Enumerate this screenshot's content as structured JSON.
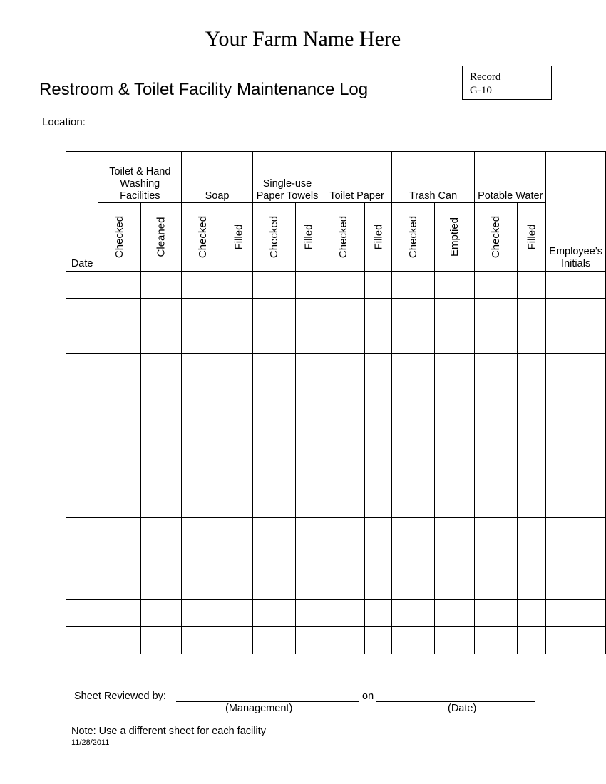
{
  "farm_name": "Your Farm Name Here",
  "title": "Restroom & Toilet Facility Maintenance Log",
  "record": {
    "line1": "Record",
    "line2": "G-10"
  },
  "location_label": "Location:",
  "location_value": "",
  "table": {
    "date_header": "Date",
    "initials_header": "Employee’s Initials",
    "groups": [
      {
        "label": "Toilet & Hand Washing Facilities",
        "subs": [
          "Checked",
          "Cleaned"
        ]
      },
      {
        "label": "Soap",
        "subs": [
          "Checked",
          "Filled"
        ]
      },
      {
        "label": "Single-use Paper Towels",
        "subs": [
          "Checked",
          "Filled"
        ]
      },
      {
        "label": "Toilet Paper",
        "subs": [
          "Checked",
          "Filled"
        ]
      },
      {
        "label": "Trash Can",
        "subs": [
          "Checked",
          "Emptied"
        ]
      },
      {
        "label": "Potable Water",
        "subs": [
          "Checked",
          "Filled"
        ]
      }
    ],
    "row_count": 14
  },
  "footer": {
    "reviewed_label": "Sheet Reviewed by:",
    "on_label": "on",
    "management_caption": "(Management)",
    "date_caption": "(Date)",
    "note": "Note: Use a different sheet for each facility",
    "version_date": "11/28/2011"
  }
}
